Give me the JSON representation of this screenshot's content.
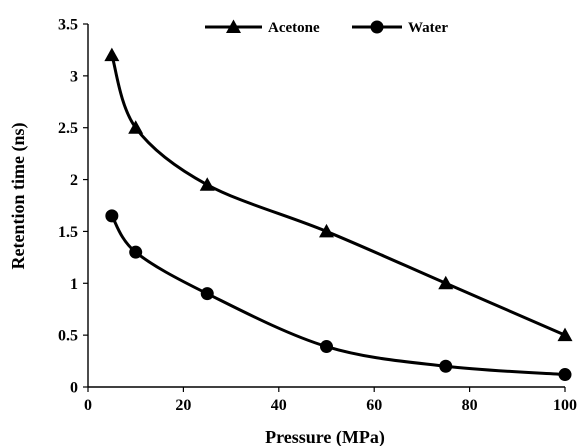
{
  "chart_data": {
    "type": "line",
    "title": "",
    "xlabel": "Pressure (MPa)",
    "ylabel": "Retention time (ns)",
    "xlim": [
      0,
      100
    ],
    "ylim": [
      0,
      3.5
    ],
    "xticks": [
      "0",
      "20",
      "40",
      "60",
      "80",
      "100"
    ],
    "yticks": [
      "0",
      "0.5",
      "1",
      "1.5",
      "2",
      "2.5",
      "3",
      "3.5"
    ],
    "grid": false,
    "legend_position": "top",
    "smooth": true,
    "line_color": "#000000",
    "series": [
      {
        "name": "Acetone",
        "marker": "triangle",
        "x": [
          5,
          10,
          25,
          50,
          75,
          100
        ],
        "y": [
          3.2,
          2.5,
          1.95,
          1.5,
          1.0,
          0.5
        ]
      },
      {
        "name": "Water",
        "marker": "circle",
        "x": [
          5,
          10,
          25,
          50,
          75,
          100
        ],
        "y": [
          1.65,
          1.3,
          0.9,
          0.39,
          0.2,
          0.12
        ]
      }
    ]
  }
}
